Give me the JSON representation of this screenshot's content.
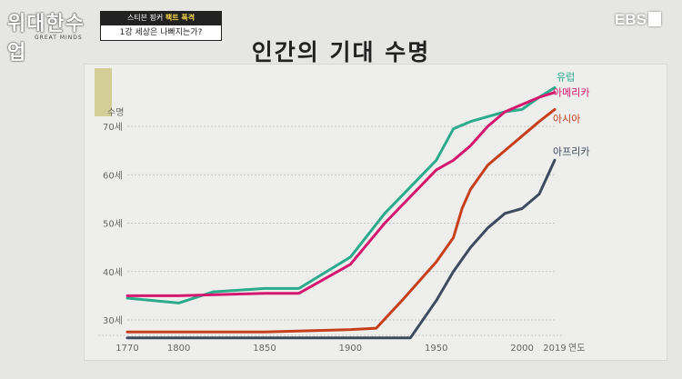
{
  "show": {
    "logo_text": "위대한수업",
    "logo_sub": "GREAT MINDS",
    "caption_line1_a": "스티븐 핑커",
    "caption_line1_b": "팩트 폭격",
    "caption_line2": "1강 세상은 나빠지는가?",
    "channel": "EBS"
  },
  "chart_data": {
    "type": "line",
    "title": "인간의 기대 수명",
    "ylabel": "수명",
    "xlabel": "연도",
    "xlim": [
      1770,
      2019
    ],
    "ylim": [
      25,
      80
    ],
    "x_ticks": [
      1770,
      1800,
      1850,
      1900,
      1950,
      2000,
      2019
    ],
    "y_ticks": [
      {
        "value": 30,
        "label": "30세"
      },
      {
        "value": 40,
        "label": "40세"
      },
      {
        "value": 50,
        "label": "50세"
      },
      {
        "value": 60,
        "label": "60세"
      },
      {
        "value": 70,
        "label": "70세"
      }
    ],
    "grid": true,
    "series": [
      {
        "name": "유럽",
        "color": "#2bab8c",
        "points": [
          [
            1770,
            34.5
          ],
          [
            1800,
            33.5
          ],
          [
            1820,
            35.8
          ],
          [
            1850,
            36.5
          ],
          [
            1870,
            36.5
          ],
          [
            1900,
            43
          ],
          [
            1920,
            52
          ],
          [
            1950,
            63
          ],
          [
            1960,
            69.5
          ],
          [
            1970,
            71
          ],
          [
            1980,
            72
          ],
          [
            1990,
            73
          ],
          [
            2000,
            73.5
          ],
          [
            2010,
            76
          ],
          [
            2019,
            78
          ]
        ]
      },
      {
        "name": "아메리카",
        "color": "#d4186e",
        "points": [
          [
            1770,
            35
          ],
          [
            1800,
            35
          ],
          [
            1850,
            35.5
          ],
          [
            1870,
            35.5
          ],
          [
            1900,
            41.5
          ],
          [
            1920,
            50
          ],
          [
            1950,
            61
          ],
          [
            1960,
            63
          ],
          [
            1970,
            66
          ],
          [
            1980,
            70
          ],
          [
            1990,
            73
          ],
          [
            2000,
            74.5
          ],
          [
            2010,
            76
          ],
          [
            2019,
            77
          ]
        ]
      },
      {
        "name": "아시아",
        "color": "#c7401e",
        "points": [
          [
            1770,
            27.5
          ],
          [
            1800,
            27.5
          ],
          [
            1850,
            27.5
          ],
          [
            1900,
            28
          ],
          [
            1915,
            28.3
          ],
          [
            1930,
            34
          ],
          [
            1950,
            42
          ],
          [
            1960,
            47
          ],
          [
            1965,
            53
          ],
          [
            1970,
            57
          ],
          [
            1980,
            62
          ],
          [
            1990,
            65
          ],
          [
            2000,
            68
          ],
          [
            2010,
            71
          ],
          [
            2019,
            73.5
          ]
        ]
      },
      {
        "name": "아프리카",
        "color": "#3e4a5e",
        "points": [
          [
            1770,
            26.3
          ],
          [
            1800,
            26.3
          ],
          [
            1850,
            26.3
          ],
          [
            1900,
            26.3
          ],
          [
            1935,
            26.3
          ],
          [
            1950,
            34
          ],
          [
            1960,
            40
          ],
          [
            1970,
            45
          ],
          [
            1980,
            49
          ],
          [
            1990,
            52
          ],
          [
            2000,
            53
          ],
          [
            2010,
            56
          ],
          [
            2019,
            63
          ]
        ]
      }
    ]
  }
}
